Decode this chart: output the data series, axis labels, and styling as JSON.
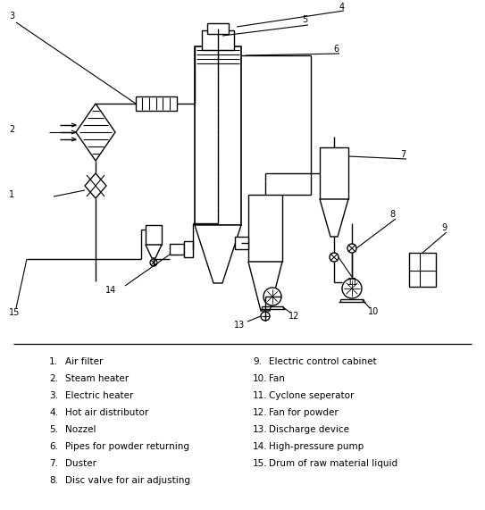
{
  "legend_items_left": [
    [
      "1.",
      "Air filter"
    ],
    [
      "2.",
      "Steam heater"
    ],
    [
      "3.",
      "Electric heater"
    ],
    [
      "4.",
      "Hot air distributor"
    ],
    [
      "5.",
      "Nozzel"
    ],
    [
      "6.",
      "Pipes for powder returning"
    ],
    [
      "7.",
      "Duster"
    ],
    [
      "8.",
      "Disc valve for air adjusting"
    ]
  ],
  "legend_items_right": [
    [
      "9.",
      "Electric control cabinet"
    ],
    [
      "10.",
      "Fan"
    ],
    [
      "11.",
      "Cyclone seperator"
    ],
    [
      "12.",
      "Fan for powder"
    ],
    [
      "13.",
      "Discharge device"
    ],
    [
      "14.",
      "High-pressure pump"
    ],
    [
      "15.",
      "Drum of raw material liquid"
    ]
  ],
  "bg_color": "#ffffff",
  "line_color": "#000000",
  "text_color": "#000000"
}
